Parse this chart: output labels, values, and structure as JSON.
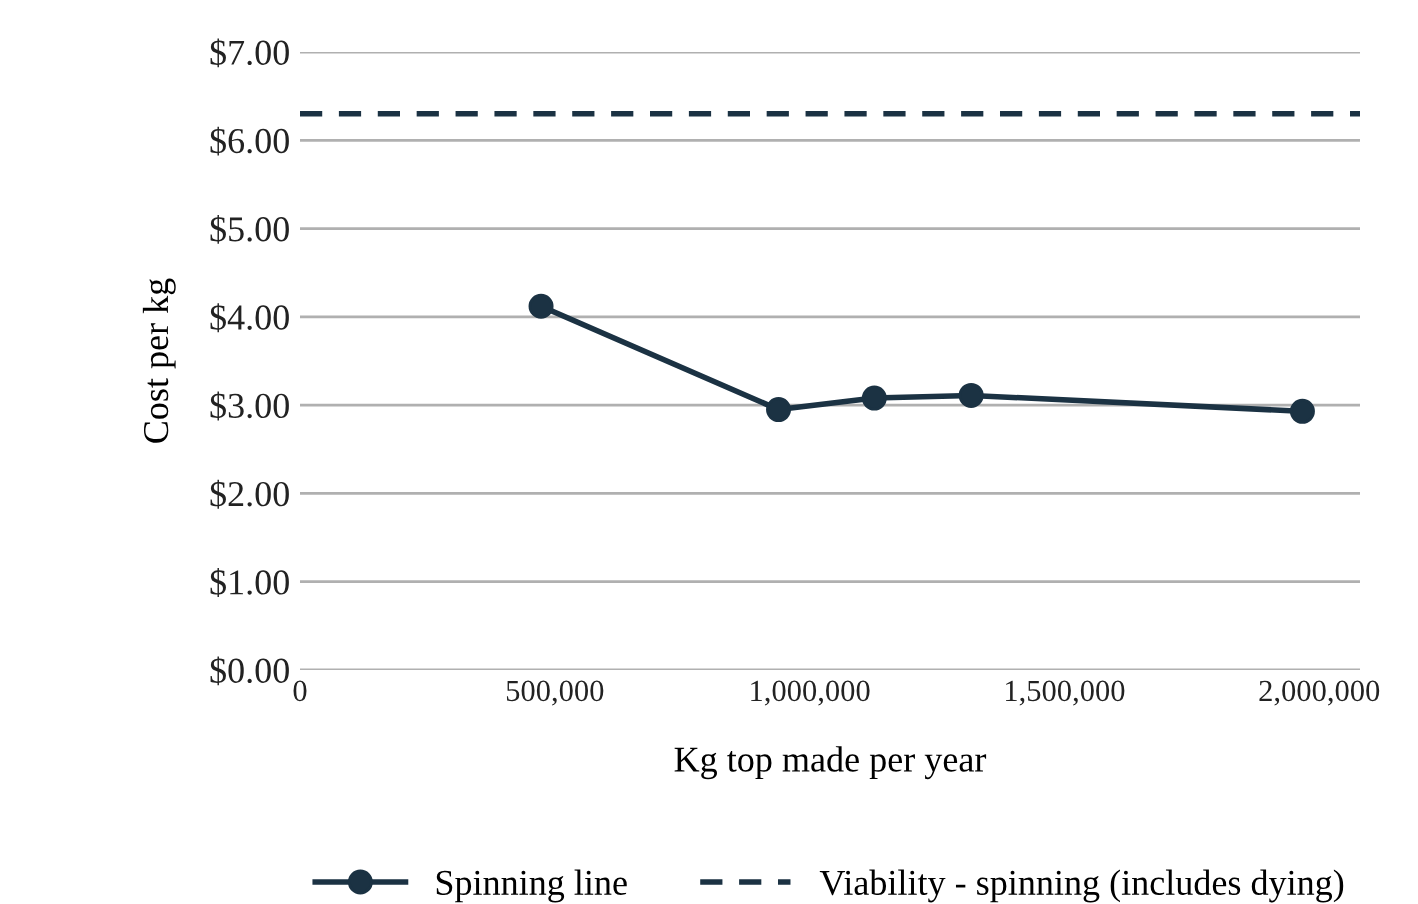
{
  "chart_data": {
    "type": "line",
    "xlabel": "Kg top made per year",
    "ylabel": "Cost per kg",
    "x": [
      473000,
      939000,
      1127000,
      1317000,
      1967000
    ],
    "series": [
      {
        "name": "Spinning line",
        "color": "#1b3243",
        "values": [
          4.12,
          2.95,
          3.08,
          3.11,
          2.93
        ]
      }
    ],
    "ref_lines": [
      {
        "axis": "y",
        "value": 6.3,
        "label": "Viability - spinning (includes dying)",
        "color": "#1b3243",
        "line_style": "dashed"
      }
    ],
    "xlim": [
      0,
      2080000
    ],
    "xticks": [
      0,
      {
        "value": 500000,
        "label": "500,000"
      },
      {
        "value": 1000000,
        "label": "1,000,000"
      },
      {
        "value": 1500000,
        "label": "1,500,000"
      },
      {
        "value": 2000000,
        "label": "2,000,000"
      }
    ],
    "ylim": [
      0,
      7
    ],
    "yticks": [
      {
        "value": 0,
        "label": "$0.00"
      },
      {
        "value": 1,
        "label": "$1.00"
      },
      {
        "value": 2,
        "label": "$2.00"
      },
      {
        "value": 3,
        "label": "$3.00"
      },
      {
        "value": 4,
        "label": "$4.00"
      },
      {
        "value": 5,
        "label": "$5.00"
      },
      {
        "value": 6,
        "label": "$6.00"
      },
      {
        "value": 7,
        "label": "$7.00"
      }
    ],
    "grid": "y",
    "legend": "bottom",
    "marker": "circle",
    "line_style": "solid"
  }
}
